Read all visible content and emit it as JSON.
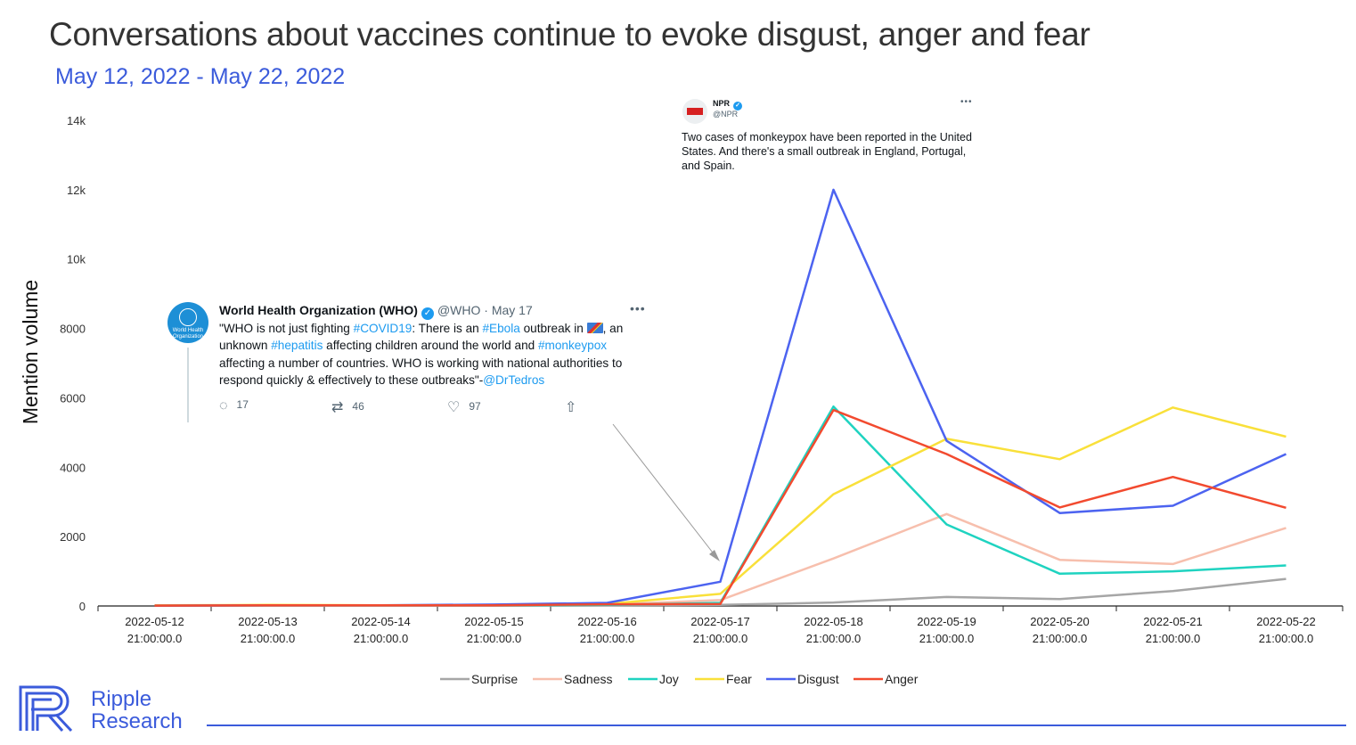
{
  "title": "Conversations about vaccines continue to evoke disgust, anger and fear",
  "subtitle": "May 12, 2022 - May 22, 2022",
  "chart_data": {
    "type": "line",
    "ylabel": "Mention volume",
    "xlabel": "",
    "ylim": [
      0,
      14000
    ],
    "yticks": [
      0,
      2000,
      4000,
      6000,
      8000,
      10000,
      12000,
      14000
    ],
    "ytick_labels": [
      "0",
      "2000",
      "4000",
      "6000",
      "8000",
      "10k",
      "12k",
      "14k"
    ],
    "categories": [
      "2022-05-12 21:00:00.0",
      "2022-05-13 21:00:00.0",
      "2022-05-14 21:00:00.0",
      "2022-05-15 21:00:00.0",
      "2022-05-16 21:00:00.0",
      "2022-05-17 21:00:00.0",
      "2022-05-18 21:00:00.0",
      "2022-05-19 21:00:00.0",
      "2022-05-20 21:00:00.0",
      "2022-05-21 21:00:00.0",
      "2022-05-22 21:00:00.0"
    ],
    "legend_position": "bottom",
    "series": [
      {
        "name": "Surprise",
        "color": "#a6a6a6",
        "values": [
          10,
          10,
          10,
          10,
          20,
          30,
          100,
          260,
          200,
          430,
          780
        ]
      },
      {
        "name": "Sadness",
        "color": "#f7bfad",
        "values": [
          20,
          20,
          20,
          20,
          40,
          170,
          1370,
          2650,
          1330,
          1210,
          2250
        ]
      },
      {
        "name": "Joy",
        "color": "#1fd3c0",
        "values": [
          20,
          20,
          20,
          20,
          30,
          90,
          5750,
          2350,
          930,
          1000,
          1170
        ]
      },
      {
        "name": "Fear",
        "color": "#f9e03a",
        "values": [
          20,
          30,
          20,
          30,
          60,
          350,
          3220,
          4820,
          4230,
          5720,
          4880
        ]
      },
      {
        "name": "Disgust",
        "color": "#4c63f0",
        "values": [
          10,
          20,
          20,
          40,
          90,
          700,
          12000,
          4760,
          2680,
          2890,
          4380
        ]
      },
      {
        "name": "Anger",
        "color": "#f24a2f",
        "values": [
          10,
          20,
          20,
          20,
          50,
          60,
          5650,
          4380,
          2840,
          3720,
          2830
        ]
      }
    ]
  },
  "tweets": {
    "who": {
      "name": "World Health Organization (WHO)",
      "handle": "@WHO · May 17",
      "avatar_text": "World Health Organization",
      "text_1": "\"WHO is not just fighting ",
      "tag_covid": "#COVID19",
      "text_2": ": There is an ",
      "tag_ebola": "#Ebola",
      "text_3": " outbreak in ",
      "text_4": ", an unknown ",
      "tag_hepatitis": "#hepatitis",
      "text_5": " affecting children around the world and ",
      "tag_monkeypox": "#monkeypox",
      "text_6": " affecting a number of countries. WHO is working with national authorities to respond quickly & effectively to these outbreaks\"-",
      "tag_tedros": "@DrTedros",
      "replies": "17",
      "retweets": "46",
      "likes": "97"
    },
    "npr": {
      "name": "NPR",
      "handle": "@NPR",
      "text": "Two cases of monkeypox have been reported in the United States. And there's a small outbreak in England, Portugal, and Spain."
    }
  },
  "brand": {
    "line1": "Ripple",
    "line2": "Research"
  }
}
